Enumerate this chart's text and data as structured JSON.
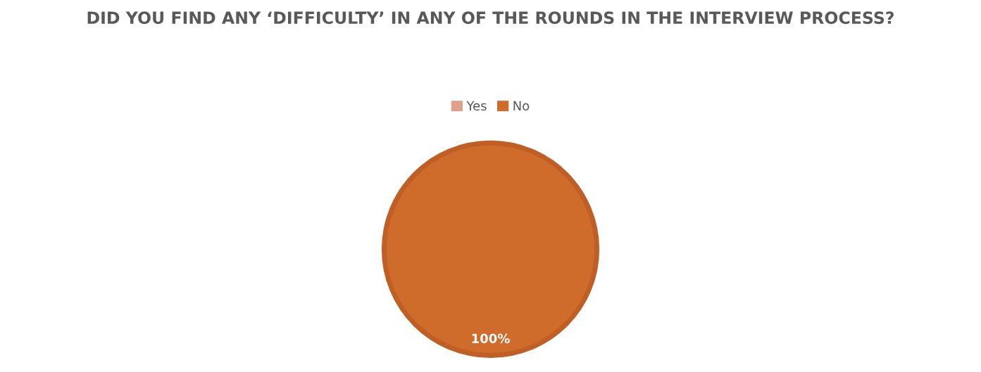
{
  "chart_data": {
    "type": "pie",
    "title": "DID YOU FIND ANY ‘DIFFICULTY’ IN ANY OF THE ROUNDS IN THE INTERVIEW PROCESS?",
    "categories": [
      "Yes",
      "No"
    ],
    "values": [
      0,
      100
    ],
    "colors": [
      "#e0a08a",
      "#d06c2b"
    ],
    "value_labels": [
      null,
      "100%"
    ],
    "legend": "top"
  }
}
